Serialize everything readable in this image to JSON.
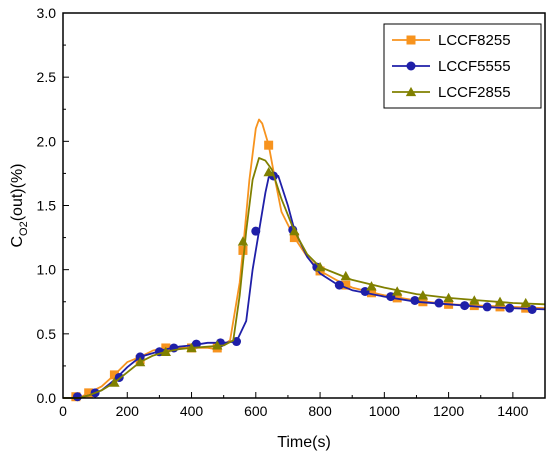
{
  "chart_data": {
    "type": "line",
    "xlabel": "Time(s)",
    "ylabel": {
      "main": "C",
      "sub": "O2",
      "rest": "(out)(%)"
    },
    "xlim": [
      0,
      1500
    ],
    "ylim": [
      0,
      3.0
    ],
    "x_ticks": [
      0,
      200,
      400,
      600,
      800,
      1000,
      1200,
      1400
    ],
    "y_ticks": [
      0.0,
      0.5,
      1.0,
      1.5,
      2.0,
      2.5,
      3.0
    ],
    "x_tick_labels": [
      "0",
      "200",
      "400",
      "600",
      "800",
      "1000",
      "1200",
      "1400"
    ],
    "y_tick_labels": [
      "0.0",
      "0.5",
      "1.0",
      "1.5",
      "2.0",
      "2.5",
      "3.0"
    ],
    "grid": false,
    "legend_position": "top-right",
    "series": [
      {
        "name": "LCCF8255",
        "color": "#F7931E",
        "marker": "square",
        "x": [
          0,
          50,
          80,
          120,
          160,
          200,
          240,
          280,
          320,
          360,
          400,
          450,
          480,
          520,
          550,
          560,
          580,
          600,
          610,
          620,
          640,
          660,
          680,
          720,
          760,
          800,
          850,
          900,
          1000,
          1100,
          1200,
          1300,
          1400,
          1500
        ],
        "y": [
          0.0,
          0.0,
          0.04,
          0.09,
          0.18,
          0.28,
          0.32,
          0.37,
          0.39,
          0.39,
          0.39,
          0.39,
          0.38,
          0.45,
          0.9,
          1.15,
          1.7,
          2.1,
          2.17,
          2.14,
          1.97,
          1.7,
          1.45,
          1.25,
          1.1,
          0.99,
          0.92,
          0.86,
          0.8,
          0.76,
          0.73,
          0.72,
          0.71,
          0.7
        ],
        "marker_x": [
          40,
          80,
          160,
          240,
          320,
          400,
          480,
          560,
          640,
          720,
          800,
          880,
          960,
          1040,
          1120,
          1200,
          1280,
          1360,
          1440
        ],
        "marker_y": [
          0.01,
          0.04,
          0.18,
          0.3,
          0.39,
          0.39,
          0.39,
          1.15,
          1.97,
          1.25,
          0.99,
          0.88,
          0.82,
          0.78,
          0.75,
          0.73,
          0.72,
          0.71,
          0.7
        ]
      },
      {
        "name": "LCCF5555",
        "color": "#1F1FA8",
        "marker": "circle",
        "x": [
          0,
          50,
          80,
          120,
          160,
          200,
          240,
          280,
          320,
          360,
          400,
          450,
          500,
          540,
          570,
          590,
          610,
          630,
          640,
          650,
          670,
          700,
          720,
          760,
          800,
          850,
          900,
          1000,
          1100,
          1200,
          1300,
          1400,
          1500
        ],
        "y": [
          0.0,
          0.0,
          0.02,
          0.06,
          0.14,
          0.24,
          0.32,
          0.35,
          0.38,
          0.4,
          0.41,
          0.43,
          0.43,
          0.44,
          0.6,
          1.0,
          1.3,
          1.6,
          1.72,
          1.75,
          1.73,
          1.5,
          1.31,
          1.1,
          0.97,
          0.89,
          0.84,
          0.79,
          0.75,
          0.73,
          0.71,
          0.7,
          0.69
        ],
        "marker_x": [
          45,
          100,
          175,
          240,
          300,
          345,
          415,
          490,
          540,
          600,
          655,
          715,
          790,
          860,
          940,
          1020,
          1095,
          1170,
          1250,
          1320,
          1390,
          1460
        ],
        "marker_y": [
          0.01,
          0.04,
          0.16,
          0.32,
          0.36,
          0.39,
          0.42,
          0.43,
          0.44,
          1.3,
          1.73,
          1.31,
          1.02,
          0.88,
          0.83,
          0.79,
          0.76,
          0.74,
          0.72,
          0.71,
          0.7,
          0.69
        ]
      },
      {
        "name": "LCCF2855",
        "color": "#808000",
        "marker": "triangle",
        "x": [
          0,
          50,
          80,
          120,
          160,
          200,
          240,
          280,
          320,
          360,
          400,
          450,
          500,
          530,
          550,
          570,
          590,
          610,
          630,
          650,
          680,
          720,
          760,
          800,
          850,
          900,
          1000,
          1100,
          1200,
          1300,
          1400,
          1500
        ],
        "y": [
          0.0,
          0.0,
          0.02,
          0.06,
          0.12,
          0.2,
          0.28,
          0.33,
          0.36,
          0.38,
          0.39,
          0.4,
          0.41,
          0.45,
          0.8,
          1.3,
          1.7,
          1.87,
          1.85,
          1.78,
          1.55,
          1.3,
          1.12,
          1.02,
          0.97,
          0.92,
          0.86,
          0.81,
          0.78,
          0.76,
          0.74,
          0.73
        ],
        "marker_x": [
          160,
          240,
          320,
          400,
          480,
          560,
          640,
          720,
          800,
          880,
          960,
          1040,
          1120,
          1200,
          1280,
          1360,
          1440
        ],
        "marker_y": [
          0.12,
          0.28,
          0.36,
          0.39,
          0.41,
          1.22,
          1.76,
          1.3,
          1.02,
          0.95,
          0.87,
          0.83,
          0.8,
          0.78,
          0.76,
          0.75,
          0.74
        ]
      }
    ]
  }
}
